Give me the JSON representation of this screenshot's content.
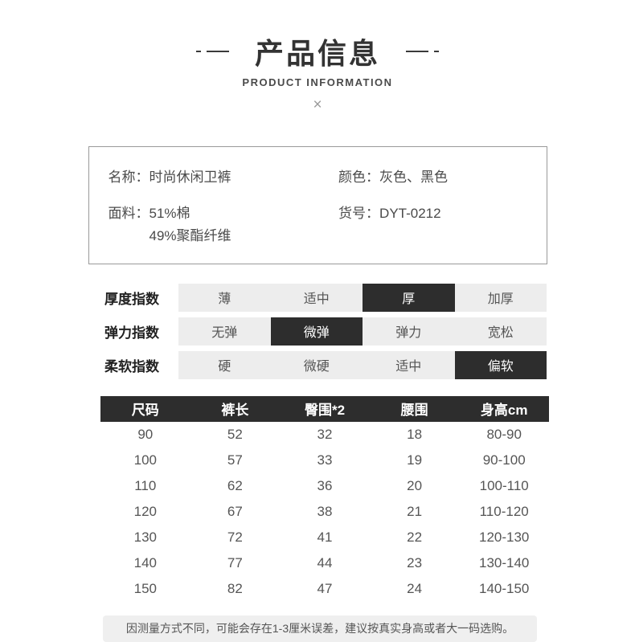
{
  "header": {
    "title": "产品信息",
    "subtitle": "PRODUCT INFORMATION",
    "divider_icon": "×"
  },
  "info": {
    "name_label": "名称：",
    "name_value": "时尚休闲卫裤",
    "fabric_label": "面料：",
    "fabric_value_line1": "51%棉",
    "fabric_value_line2": "49%聚酯纤维",
    "color_label": "颜色：",
    "color_value": "灰色、黑色",
    "item_label": "货号：",
    "item_value": "DYT-0212"
  },
  "indices": [
    {
      "label": "厚度指数",
      "options": [
        "薄",
        "适中",
        "厚",
        "加厚"
      ],
      "selected": 2
    },
    {
      "label": "弹力指数",
      "options": [
        "无弹",
        "微弹",
        "弹力",
        "宽松"
      ],
      "selected": 1
    },
    {
      "label": "柔软指数",
      "options": [
        "硬",
        "微硬",
        "适中",
        "偏软"
      ],
      "selected": 3
    }
  ],
  "size_table": {
    "columns": [
      "尺码",
      "裤长",
      "臀围*2",
      "腰围",
      "身高cm"
    ],
    "rows": [
      [
        "90",
        "52",
        "32",
        "18",
        "80-90"
      ],
      [
        "100",
        "57",
        "33",
        "19",
        "90-100"
      ],
      [
        "110",
        "62",
        "36",
        "20",
        "100-110"
      ],
      [
        "120",
        "67",
        "38",
        "21",
        "110-120"
      ],
      [
        "130",
        "72",
        "41",
        "22",
        "120-130"
      ],
      [
        "140",
        "77",
        "44",
        "23",
        "130-140"
      ],
      [
        "150",
        "82",
        "47",
        "24",
        "140-150"
      ]
    ]
  },
  "note": "因测量方式不同，可能会存在1-3厘米误差，建议按真实身高或者大一码选购。",
  "colors": {
    "accent_dark": "#2d2d2d",
    "bar_bg": "#ededed",
    "note_bg": "#efefef",
    "title_text": "#333333"
  }
}
